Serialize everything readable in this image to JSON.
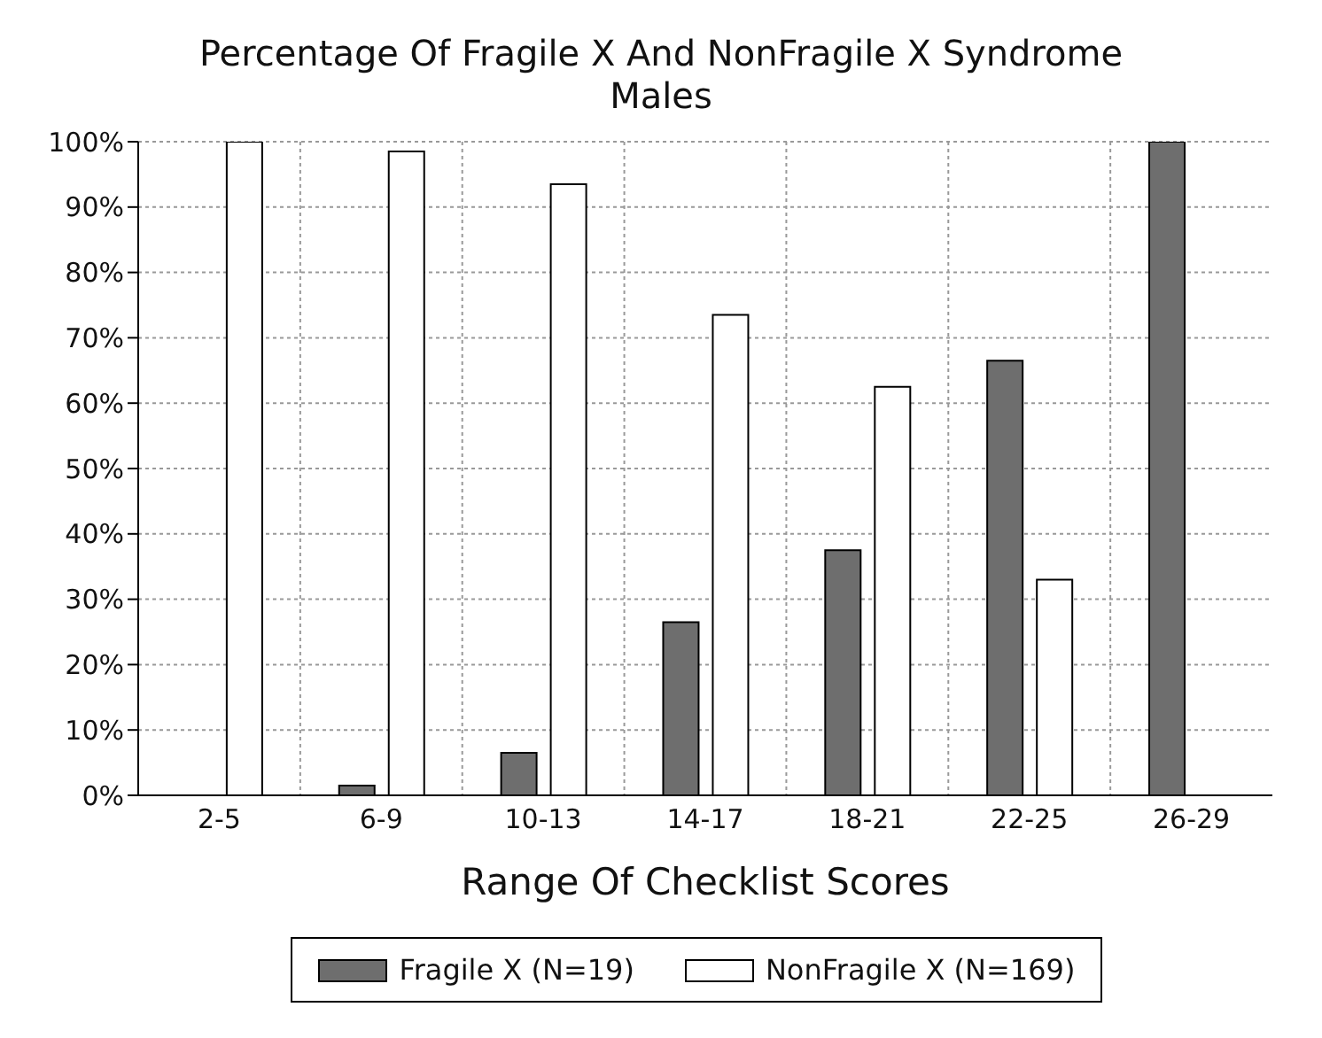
{
  "chart_data": {
    "type": "bar",
    "title": "Percentage Of Fragile X And NonFragile X Syndrome Males",
    "xlabel": "Range Of Checklist Scores",
    "categories": [
      "2-5",
      "6-9",
      "10-13",
      "14-17",
      "18-21",
      "22-25",
      "26-29"
    ],
    "series": [
      {
        "name": "Fragile X (N=19)",
        "color": "#6e6e6e",
        "values": [
          0,
          1.5,
          6.5,
          26.5,
          37.5,
          66.5,
          100
        ]
      },
      {
        "name": "NonFragile X (N=169)",
        "color": "#ffffff",
        "values": [
          100,
          98.5,
          93.5,
          73.5,
          62.5,
          33,
          0
        ]
      }
    ],
    "ylim": [
      0,
      100
    ],
    "yticks": [
      {
        "value": 0,
        "label": "0%"
      },
      {
        "value": 10,
        "label": "10%"
      },
      {
        "value": 20,
        "label": "20%"
      },
      {
        "value": 30,
        "label": "30%"
      },
      {
        "value": 40,
        "label": "40%"
      },
      {
        "value": 50,
        "label": "50%"
      },
      {
        "value": 60,
        "label": "60%"
      },
      {
        "value": 70,
        "label": "70%"
      },
      {
        "value": 80,
        "label": "80%"
      },
      {
        "value": 90,
        "label": "90%"
      },
      {
        "value": 100,
        "label": "100%"
      }
    ],
    "grid": true,
    "legend": "bottom"
  }
}
